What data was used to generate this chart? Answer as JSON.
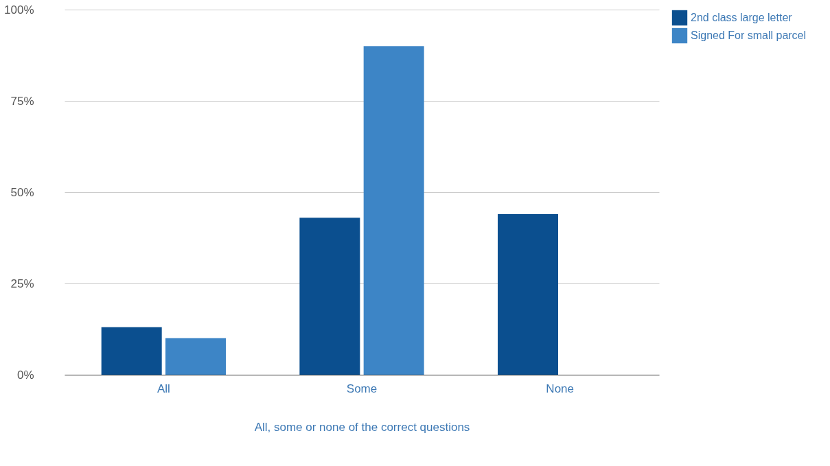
{
  "chart_data": {
    "type": "bar",
    "xlabel": "All, some or none of the correct questions",
    "categories": [
      "All",
      "Some",
      "None"
    ],
    "series": [
      {
        "name": "2nd class large letter",
        "color": "#0b4f8f",
        "values": [
          13,
          43,
          44
        ]
      },
      {
        "name": "Signed For small parcel",
        "color": "#3d85c6",
        "values": [
          10,
          90,
          0
        ]
      }
    ],
    "ylim": [
      0,
      100
    ],
    "yticks": [
      {
        "value": 0,
        "label": "0%"
      },
      {
        "value": 25,
        "label": "25%"
      },
      {
        "value": 50,
        "label": "50%"
      },
      {
        "value": 75,
        "label": "75%"
      },
      {
        "value": 100,
        "label": "100%"
      }
    ],
    "grid": "y",
    "legend": "top right"
  }
}
